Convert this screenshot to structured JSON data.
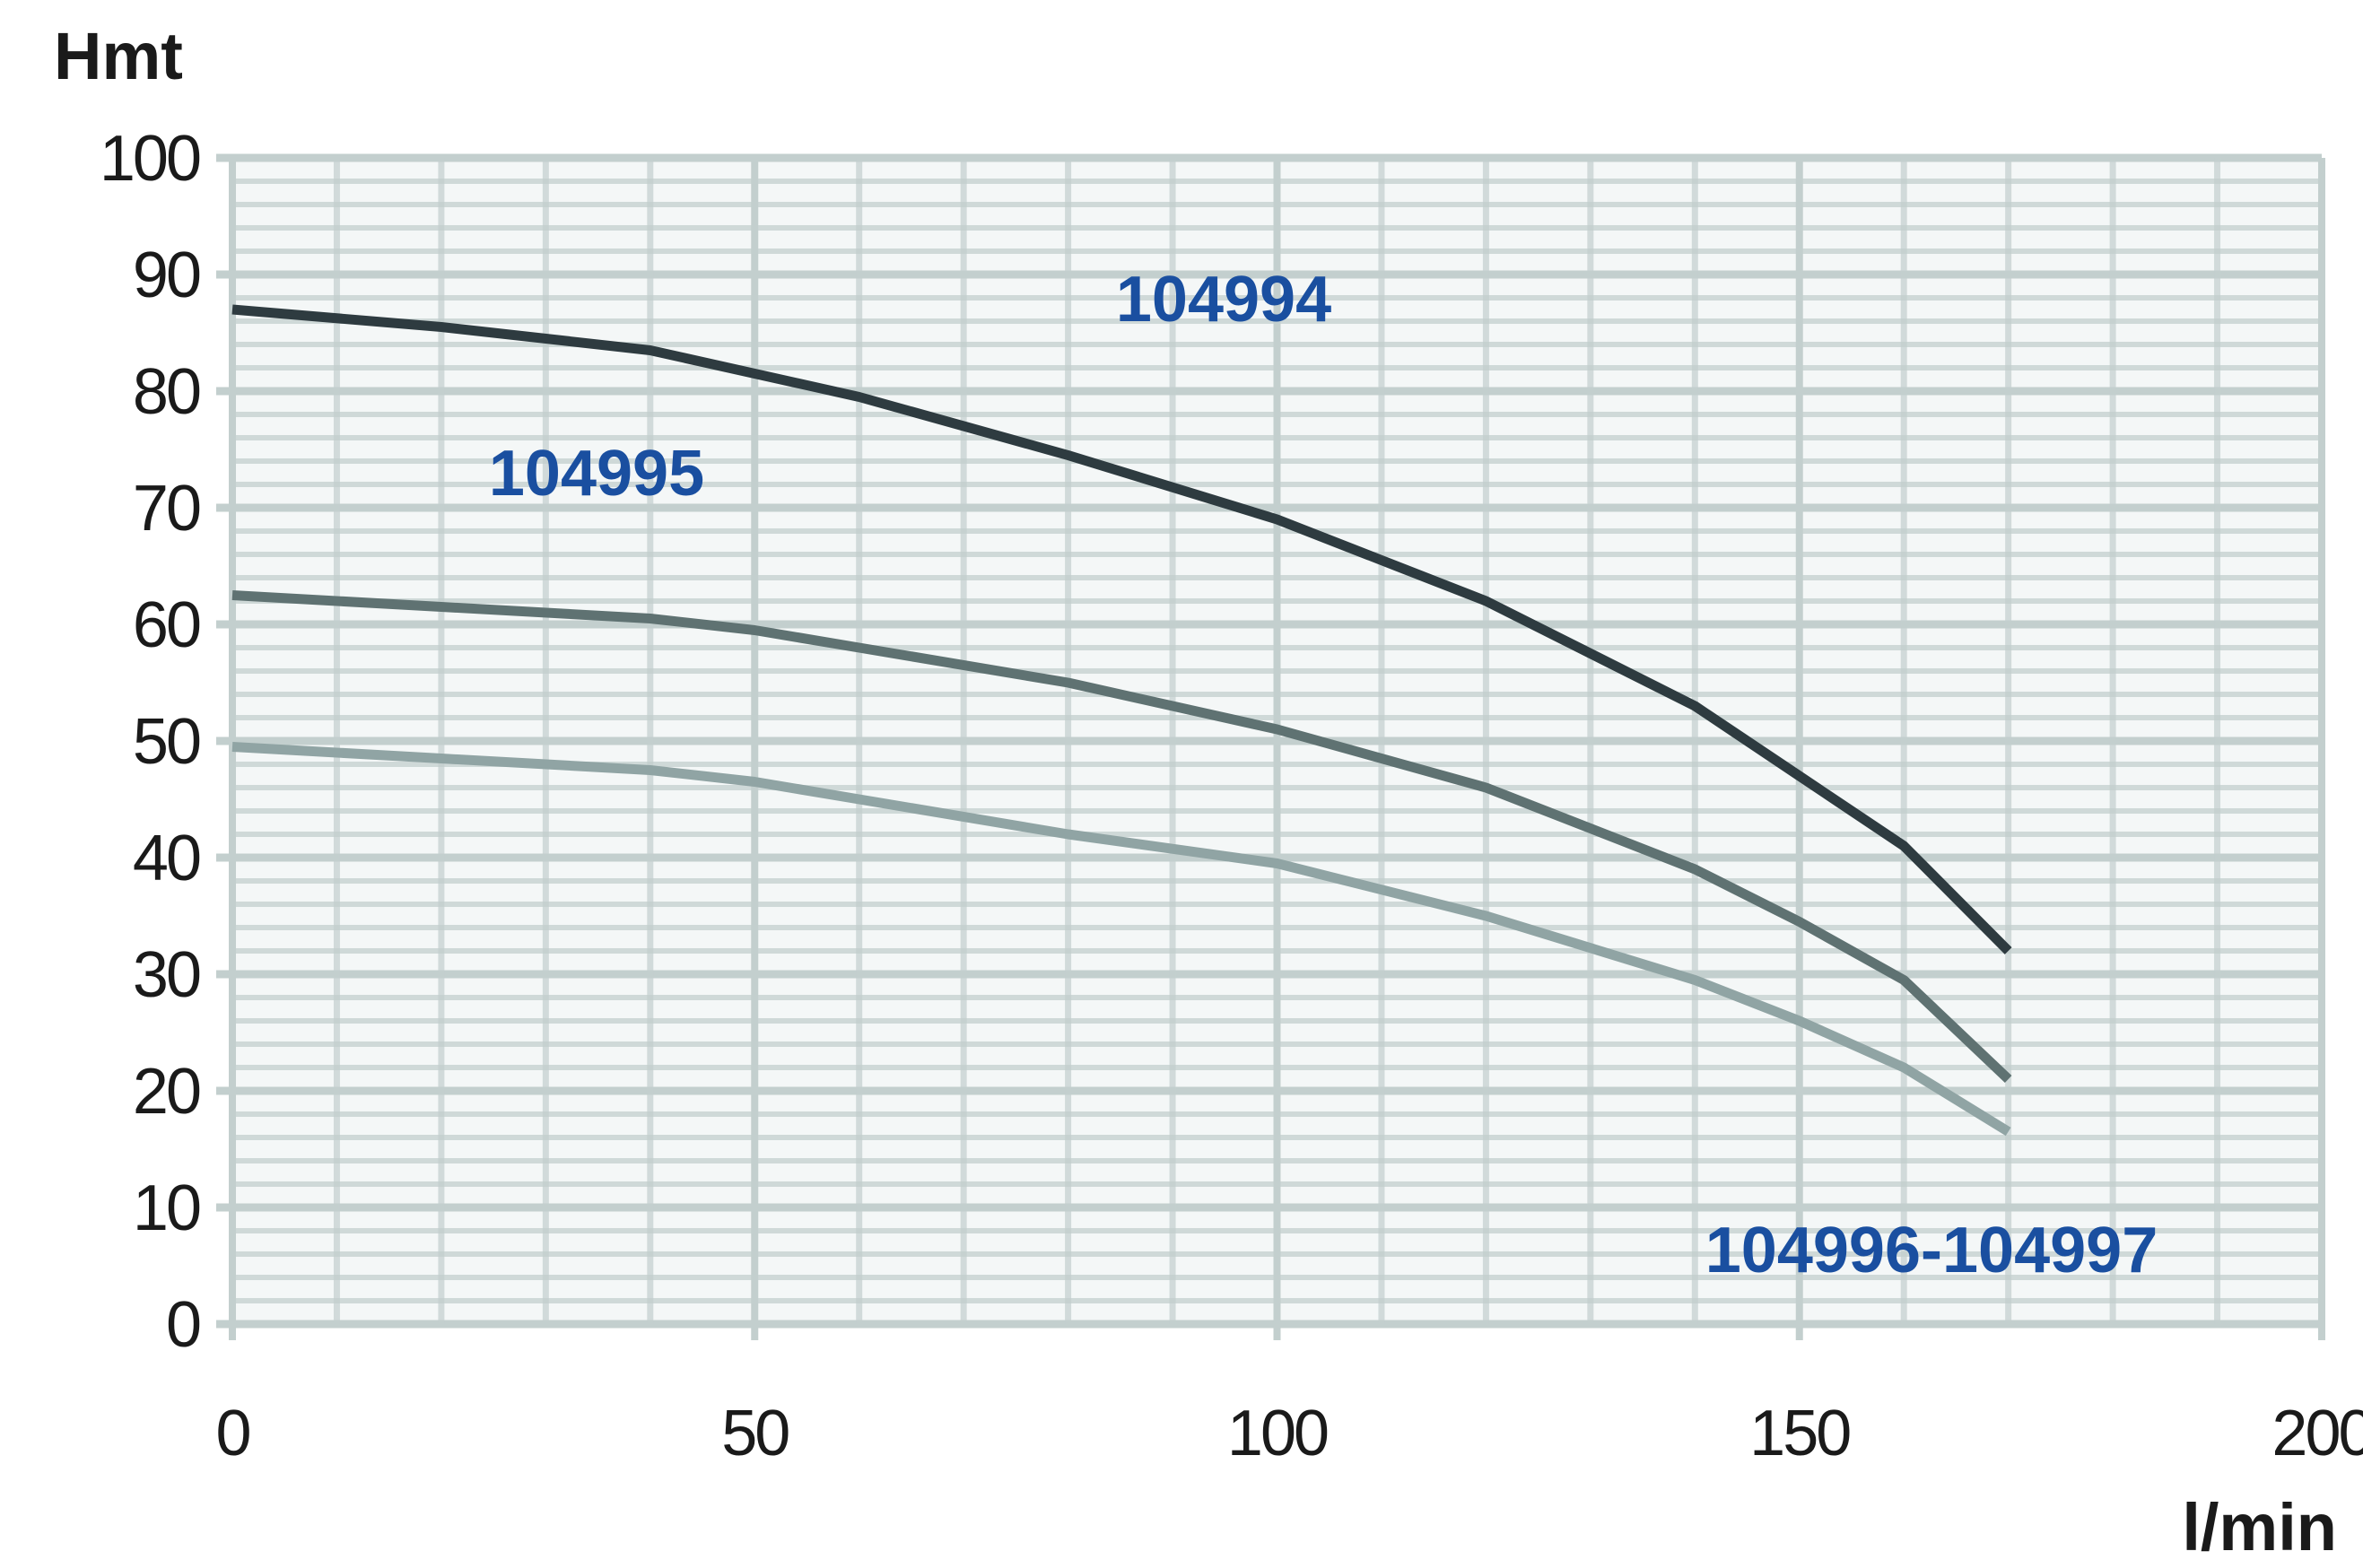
{
  "chart_data": {
    "type": "line",
    "title": "",
    "xlabel": "l/min",
    "ylabel": "Hmt",
    "xlim": [
      0,
      200
    ],
    "ylim": [
      0,
      100
    ],
    "x_ticks": [
      0,
      50,
      100,
      150,
      200
    ],
    "y_ticks": [
      0,
      10,
      20,
      30,
      40,
      50,
      60,
      70,
      80,
      90,
      100
    ],
    "grid": true,
    "label_color": "#1a4fa0",
    "grid_color": "#c3cfce",
    "series": [
      {
        "name": "104994",
        "color": "#2e3b40",
        "x": [
          0,
          20,
          40,
          50,
          60,
          80,
          100,
          120,
          140,
          150,
          160,
          170
        ],
        "y": [
          87,
          85.5,
          83.5,
          81.5,
          79.5,
          74.5,
          69,
          62,
          53,
          47,
          41,
          32
        ]
      },
      {
        "name": "104995",
        "color": "#5f7272",
        "x": [
          0,
          20,
          40,
          50,
          60,
          80,
          100,
          120,
          140,
          150,
          160,
          170
        ],
        "y": [
          62.5,
          61.5,
          60.5,
          59.5,
          58,
          55,
          51,
          46,
          39,
          34.5,
          29.5,
          21
        ]
      },
      {
        "name": "104996-104997",
        "color": "#90a4a4",
        "x": [
          0,
          20,
          40,
          50,
          60,
          80,
          100,
          120,
          140,
          150,
          160,
          170
        ],
        "y": [
          49.5,
          48.5,
          47.5,
          46.5,
          45,
          42,
          39.5,
          35,
          29.5,
          26,
          22,
          16.5
        ]
      }
    ]
  }
}
